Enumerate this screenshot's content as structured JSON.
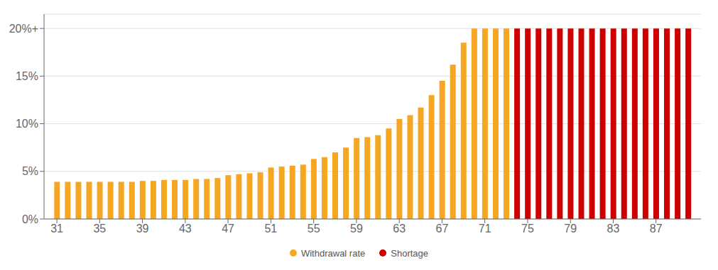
{
  "chart_data": {
    "type": "bar",
    "x": [
      31,
      32,
      33,
      34,
      35,
      36,
      37,
      38,
      39,
      40,
      41,
      42,
      43,
      44,
      45,
      46,
      47,
      48,
      49,
      50,
      51,
      52,
      53,
      54,
      55,
      56,
      57,
      58,
      59,
      60,
      61,
      62,
      63,
      64,
      65,
      66,
      67,
      68,
      69,
      70,
      71,
      72,
      73,
      74,
      75,
      76,
      77,
      78,
      79,
      80,
      81,
      82,
      83,
      84,
      85,
      86,
      87,
      88,
      89,
      90
    ],
    "series": [
      {
        "name": "Withdrawal rate",
        "color": "#F5A623",
        "values": [
          3.9,
          3.9,
          3.9,
          3.9,
          3.9,
          3.9,
          3.9,
          3.9,
          4.0,
          4.0,
          4.1,
          4.1,
          4.1,
          4.2,
          4.2,
          4.3,
          4.6,
          4.7,
          4.8,
          4.9,
          5.4,
          5.5,
          5.6,
          5.7,
          6.3,
          6.5,
          7.0,
          7.5,
          8.5,
          8.6,
          8.8,
          9.5,
          10.5,
          10.9,
          11.7,
          13.0,
          14.5,
          16.2,
          18.5,
          20.0,
          20.0,
          20.0,
          20.0,
          null,
          null,
          null,
          null,
          null,
          null,
          null,
          null,
          null,
          null,
          null,
          null,
          null,
          null,
          null,
          null,
          null
        ]
      },
      {
        "name": "Shortage",
        "color": "#CC0000",
        "values": [
          null,
          null,
          null,
          null,
          null,
          null,
          null,
          null,
          null,
          null,
          null,
          null,
          null,
          null,
          null,
          null,
          null,
          null,
          null,
          null,
          null,
          null,
          null,
          null,
          null,
          null,
          null,
          null,
          null,
          null,
          null,
          null,
          null,
          null,
          null,
          null,
          null,
          null,
          null,
          null,
          null,
          null,
          null,
          20.0,
          20.0,
          20.0,
          20.0,
          20.0,
          20.0,
          20.0,
          20.0,
          20.0,
          20.0,
          20.0,
          20.0,
          20.0,
          20.0,
          20.0,
          20.0,
          20.0
        ]
      }
    ],
    "xlim": [
      29.8,
      91.2
    ],
    "xticks": [
      31,
      35,
      39,
      43,
      47,
      51,
      55,
      59,
      63,
      67,
      71,
      75,
      79,
      83,
      87
    ],
    "ylim": [
      0,
      21.5
    ],
    "yticks": [
      {
        "value": 0,
        "label": "0%"
      },
      {
        "value": 5,
        "label": "5%"
      },
      {
        "value": 10,
        "label": "10%"
      },
      {
        "value": 15,
        "label": "15%"
      },
      {
        "value": 20,
        "label": "20%+"
      }
    ],
    "grid": "y",
    "legend": "bottom"
  }
}
